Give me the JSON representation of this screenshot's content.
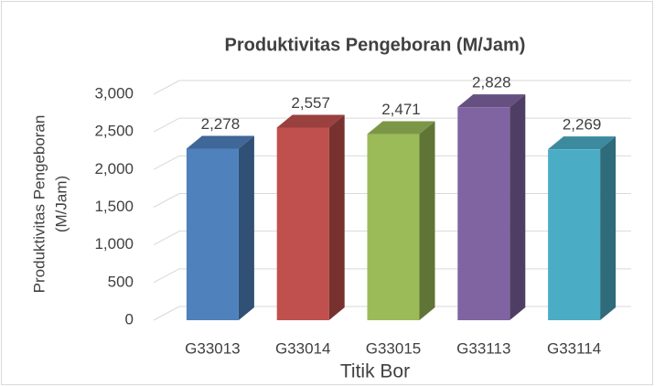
{
  "chart_data": {
    "type": "bar3d",
    "title": "Produktivitas Pengeboran  (M/Jam)",
    "y_label": [
      "Produktivitas Pengeboran",
      "(M/Jam)"
    ],
    "x_label": "Titik Bor",
    "categories": [
      "G33013",
      "G33014",
      "G33015",
      "G33113",
      "G33114"
    ],
    "values": [
      2278,
      2557,
      2471,
      2828,
      2269
    ],
    "value_labels": [
      "2,278",
      "2,557",
      "2,471",
      "2,828",
      "2,269"
    ],
    "colors": [
      "#4f81bd",
      "#c0504d",
      "#9bbb59",
      "#8064a2",
      "#4bacc6"
    ],
    "ylim": [
      0,
      3000
    ],
    "yticks": [
      0,
      500,
      {
        "value": 1000,
        "label": "1,000"
      },
      {
        "value": 1500,
        "label": "1,500"
      },
      {
        "value": 2000,
        "label": "2,000"
      },
      {
        "value": 2500,
        "label": "2,500"
      },
      {
        "value": 3000,
        "label": "3,000"
      }
    ],
    "grid": true
  }
}
